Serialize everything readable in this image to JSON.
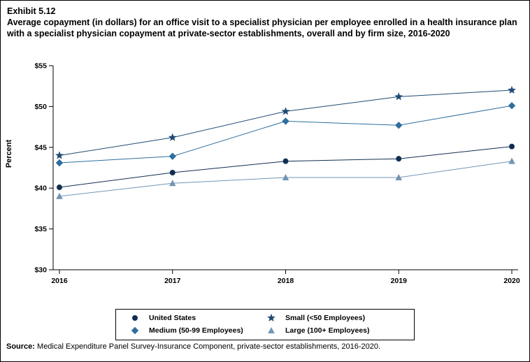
{
  "header": {
    "exhibit": "Exhibit 5.12",
    "title": "Average copayment (in dollars) for an office visit to a specialist physician per employee enrolled in a health insurance plan with a specialist physician copayment at private-sector establishments, overall and by firm size, 2016-2020"
  },
  "chart_data": {
    "type": "line",
    "x": [
      2016,
      2017,
      2018,
      2019,
      2020
    ],
    "ylabel": "Percent",
    "ylim": [
      30,
      55
    ],
    "y_ticks": [
      30,
      35,
      40,
      45,
      50,
      55
    ],
    "y_tick_prefix": "$",
    "grid": false,
    "legend_position": "bottom",
    "series": [
      {
        "name": "United States",
        "marker": "circle",
        "color": "#112e51",
        "values": [
          40.1,
          41.9,
          43.3,
          43.6,
          45.1
        ]
      },
      {
        "name": "Small (<50 Employees)",
        "marker": "star",
        "color": "#1f4a73",
        "values": [
          44.0,
          46.2,
          49.4,
          51.2,
          52.0
        ]
      },
      {
        "name": "Medium (50-99 Employees)",
        "marker": "diamond",
        "color": "#2e6e9e",
        "values": [
          43.1,
          43.9,
          48.2,
          47.7,
          50.1
        ]
      },
      {
        "name": "Large (100+ Employees)",
        "marker": "triangle",
        "color": "#7295b5",
        "values": [
          39.0,
          40.6,
          41.3,
          41.3,
          43.3
        ]
      }
    ]
  },
  "source": {
    "label": "Source:",
    "text": " Medical Expenditure Panel Survey-Insurance Component, private-sector establishments, 2016-2020."
  }
}
